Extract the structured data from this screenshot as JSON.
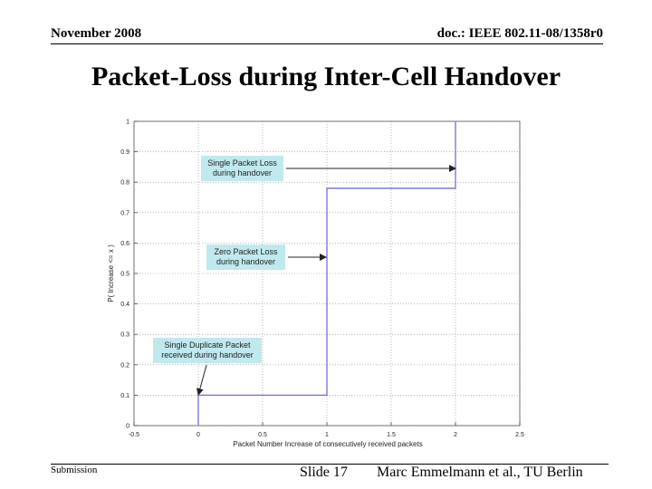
{
  "header": {
    "left": "November 2008",
    "right": "doc.: IEEE 802.11-08/1358r0"
  },
  "title": "Packet-Loss during Inter-Cell Handover",
  "footer": {
    "left": "Submission",
    "slide": "Slide 17",
    "author": "Marc Emmelmann et al., TU Berlin"
  },
  "colors": {
    "line": "#6f6fd6",
    "annotation_bg": "#bfe9ee",
    "grid": "#8a8a8a"
  },
  "chart_data": {
    "type": "line",
    "xlabel": "Packet Number Increase of consecutively received packets",
    "ylabel": "P( Increase <= x )",
    "xlim": [
      -0.5,
      2.5
    ],
    "ylim": [
      0,
      1
    ],
    "xticks": [
      "-0.5",
      "0",
      "0.5",
      "1",
      "1.5",
      "2",
      "2.5"
    ],
    "yticks": [
      "0",
      "0.1",
      "0.2",
      "0.3",
      "0.4",
      "0.5",
      "0.6",
      "0.7",
      "0.8",
      "0.9",
      "1"
    ],
    "grid": true,
    "series": [
      {
        "x": [
          0,
          0,
          1,
          1,
          2,
          2
        ],
        "y": [
          0,
          0.1,
          0.1,
          0.78,
          0.78,
          1
        ]
      }
    ],
    "annotations": [
      {
        "lines": [
          "Single Packet Loss",
          "during handover"
        ],
        "target": [
          2,
          0.85
        ]
      },
      {
        "lines": [
          "Zero Packet Loss",
          "during handover"
        ],
        "target": [
          1,
          0.55
        ]
      },
      {
        "lines": [
          "Single Duplicate Packet",
          "received during handover"
        ],
        "target": [
          0,
          0.1
        ]
      }
    ]
  }
}
